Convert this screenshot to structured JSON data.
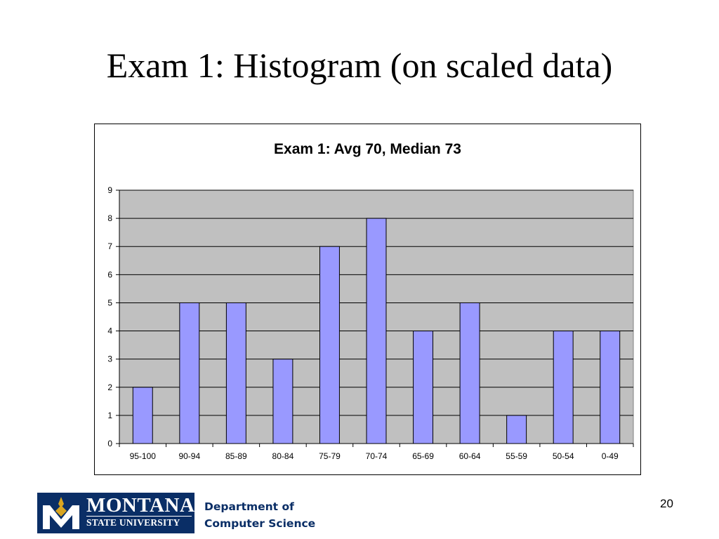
{
  "slide": {
    "title": "Exam 1: Histogram (on scaled data)",
    "page_number": "20"
  },
  "footer": {
    "logo_line1": "MONTANA",
    "logo_line2": "STATE UNIVERSITY",
    "dept_line1": "Department of",
    "dept_line2": "Computer Science"
  },
  "chart_data": {
    "type": "bar",
    "title": "Exam 1: Avg 70, Median 73",
    "xlabel": "",
    "ylabel": "",
    "categories": [
      "95-100",
      "90-94",
      "85-89",
      "80-84",
      "75-79",
      "70-74",
      "65-69",
      "60-64",
      "55-59",
      "50-54",
      "0-49"
    ],
    "values": [
      2,
      5,
      5,
      3,
      7,
      8,
      4,
      5,
      1,
      4,
      4
    ],
    "ylim": [
      0,
      9
    ],
    "yticks": [
      0,
      1,
      2,
      3,
      4,
      5,
      6,
      7,
      8,
      9
    ],
    "grid": true,
    "legend": "none",
    "colors": {
      "bar": "#9999ff",
      "plot_background": "#c0c0c0",
      "gridline": "#000000"
    }
  }
}
